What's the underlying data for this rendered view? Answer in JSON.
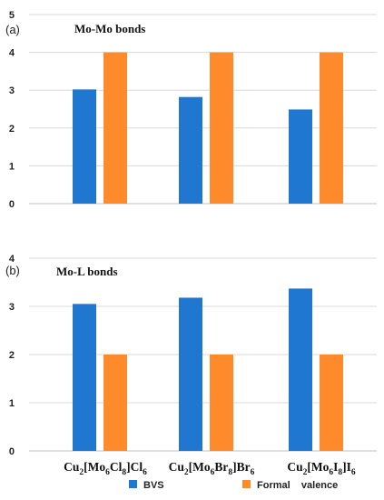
{
  "chart_data": [
    {
      "panel_label": "(a)",
      "type": "bar",
      "title": "Mo-Mo bonds",
      "ylim": [
        0,
        5
      ],
      "yticks": [
        0,
        1,
        2,
        3,
        4,
        5
      ],
      "grid": true,
      "categories": [
        "Cu2[Mo6Cl8]Cl6",
        "Cu2[Mo6Br8]Br6",
        "Cu2[Mo6I8]I6"
      ],
      "series": [
        {
          "name": "BVS",
          "color": "#1f77d0",
          "values": [
            3.02,
            2.82,
            2.49
          ]
        },
        {
          "name": "Formal valence",
          "color": "#ff8a2b",
          "values": [
            4,
            4,
            4
          ]
        }
      ]
    },
    {
      "panel_label": "(b)",
      "type": "bar",
      "title": "Mo-L bonds",
      "ylim": [
        0,
        4
      ],
      "yticks": [
        0,
        1,
        2,
        3,
        4
      ],
      "grid": true,
      "categories": [
        "Cu2[Mo6Cl8]Cl6",
        "Cu2[Mo6Br8]Br6",
        "Cu2[Mo6I8]I6"
      ],
      "series": [
        {
          "name": "BVS",
          "color": "#1f77d0",
          "values": [
            3.05,
            3.18,
            3.37
          ]
        },
        {
          "name": "Formal valence",
          "color": "#ff8a2b",
          "values": [
            2,
            2,
            2
          ]
        }
      ]
    }
  ],
  "category_labels": [
    [
      {
        "t": "Cu"
      },
      {
        "t": "2",
        "sub": true
      },
      {
        "t": "[Mo"
      },
      {
        "t": "6",
        "sub": true
      },
      {
        "t": "Cl"
      },
      {
        "t": "8",
        "sub": true
      },
      {
        "t": "]Cl"
      },
      {
        "t": "6",
        "sub": true
      }
    ],
    [
      {
        "t": "Cu"
      },
      {
        "t": "2",
        "sub": true
      },
      {
        "t": "[Mo"
      },
      {
        "t": "6",
        "sub": true
      },
      {
        "t": "Br"
      },
      {
        "t": "8",
        "sub": true
      },
      {
        "t": "]Br"
      },
      {
        "t": "6",
        "sub": true
      }
    ],
    [
      {
        "t": "Cu"
      },
      {
        "t": "2",
        "sub": true
      },
      {
        "t": "[Mo"
      },
      {
        "t": "6",
        "sub": true
      },
      {
        "t": "I"
      },
      {
        "t": "8",
        "sub": true
      },
      {
        "t": "]I"
      },
      {
        "t": "6",
        "sub": true
      }
    ]
  ],
  "legend": [
    {
      "label": "BVS",
      "color": "#1f77d0"
    },
    {
      "label": "Formal    valence",
      "color": "#ff8a2b"
    }
  ],
  "colors": {
    "grid": "#d9d9d9",
    "axis": "#bfbfbf",
    "text": "#222222"
  }
}
